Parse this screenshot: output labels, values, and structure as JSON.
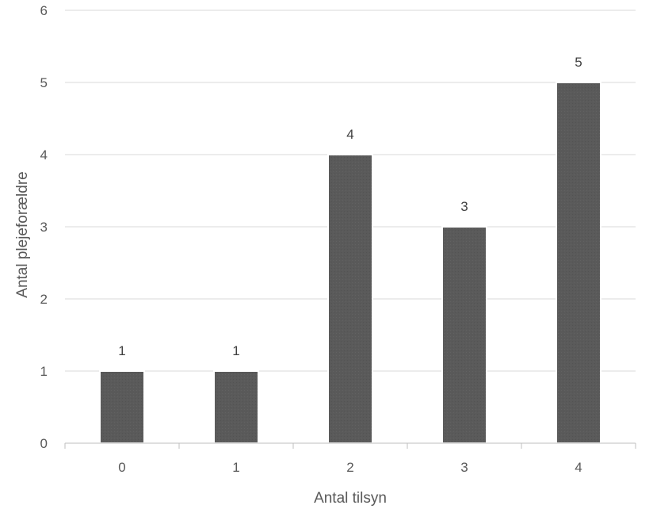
{
  "chart_data": {
    "type": "bar",
    "title": "",
    "xlabel": "Antal tilsyn",
    "ylabel": "Antal plejeforældre",
    "categories": [
      "0",
      "1",
      "2",
      "3",
      "4"
    ],
    "values": [
      1,
      1,
      4,
      3,
      5
    ],
    "data_labels": [
      "1",
      "1",
      "4",
      "3",
      "5"
    ],
    "ylim": [
      0,
      6
    ],
    "y_ticks": [
      "0",
      "1",
      "2",
      "3",
      "4",
      "5",
      "6"
    ],
    "grid": true,
    "legend": "none"
  },
  "colors": {
    "bar": "#595959",
    "grid": "#d9d9d9",
    "axis": "#bfbfbf",
    "title": "#1f4e79"
  }
}
